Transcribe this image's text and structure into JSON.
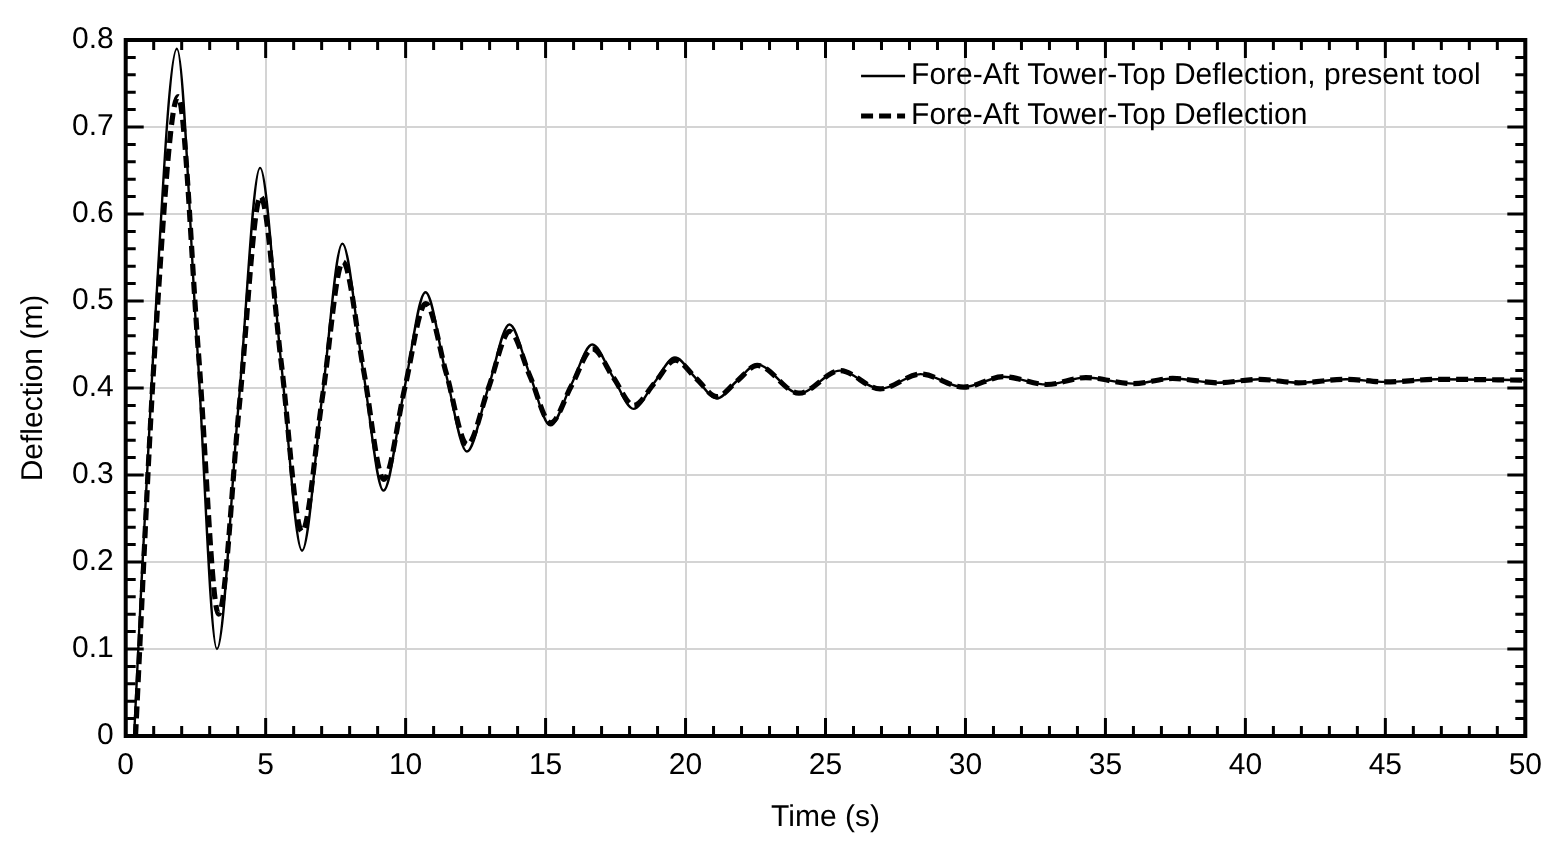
{
  "chart_data": {
    "type": "line",
    "xlabel": "Time (s)",
    "ylabel": "Deflection (m)",
    "xlim": [
      0,
      50
    ],
    "ylim": [
      0,
      0.8
    ],
    "xticks": [
      0,
      {
        "value": 1,
        "label": null
      },
      {
        "value": 2,
        "label": null
      },
      {
        "value": 3,
        "label": null
      },
      {
        "value": 4,
        "label": null
      },
      5,
      {
        "value": 6,
        "label": null
      },
      {
        "value": 7,
        "label": null
      },
      {
        "value": 8,
        "label": null
      },
      {
        "value": 9,
        "label": null
      },
      10,
      {
        "value": 11,
        "label": null
      },
      {
        "value": 12,
        "label": null
      },
      {
        "value": 13,
        "label": null
      },
      {
        "value": 14,
        "label": null
      },
      15,
      {
        "value": 16,
        "label": null
      },
      {
        "value": 17,
        "label": null
      },
      {
        "value": 18,
        "label": null
      },
      {
        "value": 19,
        "label": null
      },
      20,
      {
        "value": 21,
        "label": null
      },
      {
        "value": 22,
        "label": null
      },
      {
        "value": 23,
        "label": null
      },
      {
        "value": 24,
        "label": null
      },
      25,
      {
        "value": 26,
        "label": null
      },
      {
        "value": 27,
        "label": null
      },
      {
        "value": 28,
        "label": null
      },
      {
        "value": 29,
        "label": null
      },
      30,
      {
        "value": 31,
        "label": null
      },
      {
        "value": 32,
        "label": null
      },
      {
        "value": 33,
        "label": null
      },
      {
        "value": 34,
        "label": null
      },
      35,
      {
        "value": 36,
        "label": null
      },
      {
        "value": 37,
        "label": null
      },
      {
        "value": 38,
        "label": null
      },
      {
        "value": 39,
        "label": null
      },
      40,
      {
        "value": 41,
        "label": null
      },
      {
        "value": 42,
        "label": null
      },
      {
        "value": 43,
        "label": null
      },
      {
        "value": 44,
        "label": null
      },
      45,
      {
        "value": 46,
        "label": null
      },
      {
        "value": 47,
        "label": null
      },
      {
        "value": 48,
        "label": null
      },
      {
        "value": 49,
        "label": null
      },
      50
    ],
    "yticks": [
      0,
      {
        "value": 0.02,
        "label": null
      },
      {
        "value": 0.04,
        "label": null
      },
      {
        "value": 0.06,
        "label": null
      },
      {
        "value": 0.08,
        "label": null
      },
      0.1,
      {
        "value": 0.12,
        "label": null
      },
      {
        "value": 0.14,
        "label": null
      },
      {
        "value": 0.16,
        "label": null
      },
      {
        "value": 0.18,
        "label": null
      },
      0.2,
      {
        "value": 0.22,
        "label": null
      },
      {
        "value": 0.24,
        "label": null
      },
      {
        "value": 0.26,
        "label": null
      },
      {
        "value": 0.28,
        "label": null
      },
      0.3,
      {
        "value": 0.32,
        "label": null
      },
      {
        "value": 0.34,
        "label": null
      },
      {
        "value": 0.36,
        "label": null
      },
      {
        "value": 0.38,
        "label": null
      },
      0.4,
      {
        "value": 0.42,
        "label": null
      },
      {
        "value": 0.44,
        "label": null
      },
      {
        "value": 0.46,
        "label": null
      },
      {
        "value": 0.48,
        "label": null
      },
      0.5,
      {
        "value": 0.52,
        "label": null
      },
      {
        "value": 0.54,
        "label": null
      },
      {
        "value": 0.56,
        "label": null
      },
      {
        "value": 0.58,
        "label": null
      },
      0.6,
      {
        "value": 0.62,
        "label": null
      },
      {
        "value": 0.64,
        "label": null
      },
      {
        "value": 0.66,
        "label": null
      },
      {
        "value": 0.68,
        "label": null
      },
      0.7,
      {
        "value": 0.72,
        "label": null
      },
      {
        "value": 0.74,
        "label": null
      },
      {
        "value": 0.76,
        "label": null
      },
      {
        "value": 0.78,
        "label": null
      },
      0.8
    ],
    "grid": true,
    "legend": "top right",
    "marker": "none",
    "series": [
      {
        "name": "Fore-Aft Tower-Top Deflection, present tool",
        "color": "#000000",
        "line_style": "solid",
        "x": [
          0.3,
          1.0,
          1.83,
          2.55,
          3.26,
          4.03,
          4.8,
          5.55,
          6.3,
          7.02,
          7.74,
          8.48,
          9.21,
          9.96,
          10.71,
          11.45,
          12.19,
          12.95,
          13.71,
          14.44,
          15.17,
          15.92,
          16.67,
          17.4,
          18.14,
          18.88,
          19.62,
          20.37,
          21.12,
          21.83,
          22.55,
          24.05,
          25.52,
          26.95,
          28.4,
          29.93,
          31.36,
          32.9,
          34.3,
          36.0,
          37.4,
          39.0,
          40.5,
          41.9,
          43.6,
          45.0,
          46.9,
          50
        ],
        "values": [
          0,
          0.45,
          0.79,
          0.45,
          0.1,
          0.38,
          0.653,
          0.43,
          0.213,
          0.39,
          0.566,
          0.42,
          0.282,
          0.4,
          0.51,
          0.415,
          0.327,
          0.4,
          0.473,
          0.415,
          0.357,
          0.404,
          0.45,
          0.413,
          0.376,
          0.406,
          0.435,
          0.411,
          0.388,
          0.408,
          0.427,
          0.394,
          0.42,
          0.399,
          0.416,
          0.401,
          0.413,
          0.404,
          0.412,
          0.405,
          0.411,
          0.406,
          0.41,
          0.406,
          0.41,
          0.407,
          0.41,
          0.409
        ]
      },
      {
        "name": "Fore-Aft Tower-Top Deflection",
        "color": "#000000",
        "line_style": "dashed",
        "x": [
          0.35,
          1.05,
          1.87,
          2.6,
          3.32,
          4.06,
          4.82,
          5.56,
          6.3,
          7.03,
          7.76,
          8.5,
          9.22,
          9.97,
          10.72,
          11.46,
          12.2,
          12.96,
          13.72,
          14.45,
          15.18,
          15.93,
          16.68,
          17.42,
          18.15,
          18.9,
          19.63,
          20.38,
          21.12,
          21.84,
          22.56,
          24.05,
          25.52,
          26.95,
          28.4,
          29.93,
          31.36,
          32.9,
          34.3,
          36.0,
          37.4,
          39.0,
          40.5,
          41.9,
          43.6,
          45.0,
          46.9,
          50
        ],
        "values": [
          0,
          0.45,
          0.735,
          0.44,
          0.14,
          0.38,
          0.62,
          0.428,
          0.235,
          0.39,
          0.545,
          0.42,
          0.295,
          0.4,
          0.497,
          0.416,
          0.335,
          0.4,
          0.465,
          0.413,
          0.36,
          0.403,
          0.445,
          0.412,
          0.38,
          0.406,
          0.432,
          0.411,
          0.39,
          0.408,
          0.426,
          0.394,
          0.42,
          0.399,
          0.416,
          0.401,
          0.413,
          0.404,
          0.412,
          0.405,
          0.411,
          0.406,
          0.41,
          0.406,
          0.41,
          0.407,
          0.41,
          0.409
        ]
      }
    ]
  }
}
